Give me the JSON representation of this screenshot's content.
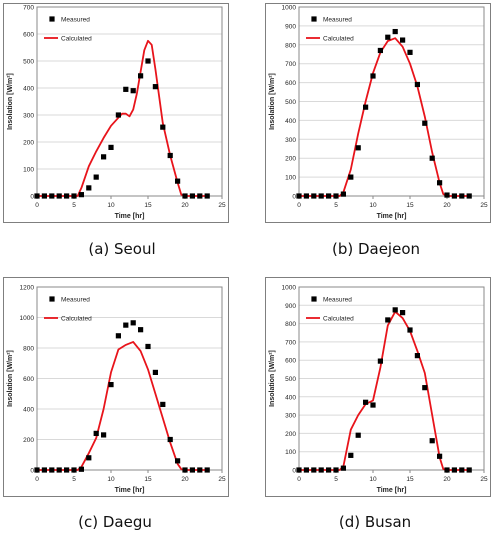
{
  "figure": {
    "panels": [
      {
        "caption": "(a)  Seoul"
      },
      {
        "caption": "(b)  Daejeon"
      },
      {
        "caption": "(c)  Daegu"
      },
      {
        "caption": "(d)  Busan"
      }
    ]
  },
  "colors": {
    "calculated": "#e8141b",
    "measured": "#000000",
    "grid": "#d9d9d9",
    "frame": "#7f7f7f"
  },
  "chart_data": [
    {
      "type": "scatter",
      "xlabel": "Time [hr]",
      "ylabel": "Insolation [W/m²]",
      "xlim": [
        0,
        25
      ],
      "xticks": [
        0,
        5,
        10,
        15,
        20,
        25
      ],
      "ylim": [
        0,
        700
      ],
      "yticks": [
        0,
        100,
        200,
        300,
        400,
        500,
        600,
        700
      ],
      "grid": "horizontal",
      "legend": "top-left",
      "series": [
        {
          "name": "Measured",
          "style": "markers",
          "x": [
            0,
            1,
            2,
            3,
            4,
            5,
            6,
            7,
            8,
            9,
            10,
            11,
            12,
            13,
            14,
            15,
            16,
            17,
            18,
            19,
            20,
            21,
            22,
            23
          ],
          "y": [
            0,
            0,
            0,
            0,
            0,
            0,
            5,
            30,
            70,
            145,
            180,
            300,
            395,
            390,
            445,
            500,
            405,
            255,
            150,
            55,
            0,
            0,
            0,
            0
          ]
        },
        {
          "name": "Calculated",
          "style": "line",
          "x": [
            0,
            1,
            2,
            3,
            4,
            5,
            5.5,
            6,
            7,
            8,
            9,
            10,
            11,
            11.5,
            12,
            12.5,
            13,
            13.5,
            14,
            14.5,
            15,
            15.5,
            16,
            16.5,
            17,
            18,
            19,
            19.5,
            20,
            21,
            22,
            23
          ],
          "y": [
            0,
            0,
            0,
            0,
            0,
            0,
            0,
            30,
            110,
            165,
            215,
            260,
            290,
            305,
            305,
            295,
            320,
            380,
            460,
            540,
            575,
            560,
            470,
            370,
            270,
            150,
            50,
            5,
            0,
            0,
            0,
            0
          ]
        }
      ]
    },
    {
      "type": "scatter",
      "xlabel": "Time [hr]",
      "ylabel": "Insolation [W/m²]",
      "xlim": [
        0,
        25
      ],
      "xticks": [
        0,
        5,
        10,
        15,
        20,
        25
      ],
      "ylim": [
        0,
        1000
      ],
      "yticks": [
        0,
        100,
        200,
        300,
        400,
        500,
        600,
        700,
        800,
        900,
        1000
      ],
      "grid": "horizontal",
      "legend": "top-left",
      "series": [
        {
          "name": "Measured",
          "style": "markers",
          "x": [
            0,
            1,
            2,
            3,
            4,
            5,
            6,
            7,
            8,
            9,
            10,
            11,
            12,
            13,
            14,
            15,
            16,
            17,
            18,
            19,
            20,
            21,
            22,
            23
          ],
          "y": [
            0,
            0,
            0,
            0,
            0,
            0,
            10,
            100,
            255,
            470,
            635,
            770,
            840,
            870,
            825,
            760,
            590,
            385,
            200,
            70,
            5,
            0,
            0,
            0
          ]
        },
        {
          "name": "Calculated",
          "style": "line",
          "x": [
            0,
            1,
            2,
            3,
            4,
            5,
            5.5,
            6,
            7,
            8,
            9,
            10,
            11,
            12,
            13,
            14,
            15,
            16,
            17,
            18,
            19,
            19.5,
            20,
            21,
            22,
            23
          ],
          "y": [
            0,
            0,
            0,
            0,
            0,
            0,
            0,
            20,
            140,
            330,
            500,
            650,
            760,
            820,
            835,
            790,
            700,
            580,
            420,
            230,
            70,
            10,
            0,
            0,
            0,
            0
          ]
        }
      ]
    },
    {
      "type": "scatter",
      "xlabel": "Time [hr]",
      "ylabel": "Insolation [W/m²]",
      "xlim": [
        0,
        25
      ],
      "xticks": [
        0,
        5,
        10,
        15,
        20,
        25
      ],
      "ylim": [
        0,
        1200
      ],
      "yticks": [
        0,
        200,
        400,
        600,
        800,
        1000,
        1200
      ],
      "grid": "horizontal",
      "legend": "top-left",
      "series": [
        {
          "name": "Measured",
          "style": "markers",
          "x": [
            0,
            1,
            2,
            3,
            4,
            5,
            6,
            7,
            8,
            9,
            10,
            11,
            12,
            13,
            14,
            15,
            16,
            17,
            18,
            19,
            20,
            21,
            22,
            23
          ],
          "y": [
            0,
            0,
            0,
            0,
            0,
            0,
            5,
            80,
            240,
            230,
            560,
            880,
            950,
            965,
            920,
            810,
            640,
            430,
            200,
            60,
            0,
            0,
            0,
            0
          ]
        },
        {
          "name": "Calculated",
          "style": "line",
          "x": [
            0,
            1,
            2,
            3,
            4,
            5,
            5.5,
            6,
            7,
            8,
            9,
            10,
            11,
            12,
            13,
            14,
            15,
            16,
            17,
            18,
            19,
            19.5,
            20,
            21,
            22,
            23
          ],
          "y": [
            0,
            0,
            0,
            0,
            0,
            0,
            0,
            20,
            110,
            210,
            400,
            640,
            790,
            820,
            840,
            780,
            660,
            500,
            340,
            180,
            40,
            5,
            0,
            0,
            0,
            0
          ]
        }
      ]
    },
    {
      "type": "scatter",
      "xlabel": "Time [hr]",
      "ylabel": "Insolation [W/m²]",
      "xlim": [
        0,
        25
      ],
      "xticks": [
        0,
        5,
        10,
        15,
        20,
        25
      ],
      "ylim": [
        0,
        1000
      ],
      "yticks": [
        0,
        100,
        200,
        300,
        400,
        500,
        600,
        700,
        800,
        900,
        1000
      ],
      "grid": "horizontal",
      "legend": "top-left",
      "series": [
        {
          "name": "Measured",
          "style": "markers",
          "x": [
            0,
            1,
            2,
            3,
            4,
            5,
            6,
            7,
            8,
            9,
            10,
            11,
            12,
            13,
            14,
            15,
            16,
            17,
            18,
            19,
            20,
            21,
            22,
            23
          ],
          "y": [
            0,
            0,
            0,
            0,
            0,
            0,
            10,
            80,
            190,
            370,
            355,
            595,
            820,
            875,
            860,
            765,
            625,
            450,
            160,
            75,
            0,
            0,
            0,
            0
          ]
        },
        {
          "name": "Calculated",
          "style": "line",
          "x": [
            0,
            1,
            2,
            3,
            4,
            5,
            5.5,
            6,
            7,
            8,
            9,
            10,
            11,
            12,
            13,
            14,
            15,
            16,
            17,
            18,
            19,
            19.5,
            20,
            21,
            22,
            23
          ],
          "y": [
            0,
            0,
            0,
            0,
            0,
            0,
            0,
            20,
            220,
            300,
            360,
            380,
            560,
            790,
            865,
            830,
            760,
            650,
            530,
            300,
            70,
            5,
            0,
            0,
            0,
            0
          ]
        }
      ]
    }
  ]
}
